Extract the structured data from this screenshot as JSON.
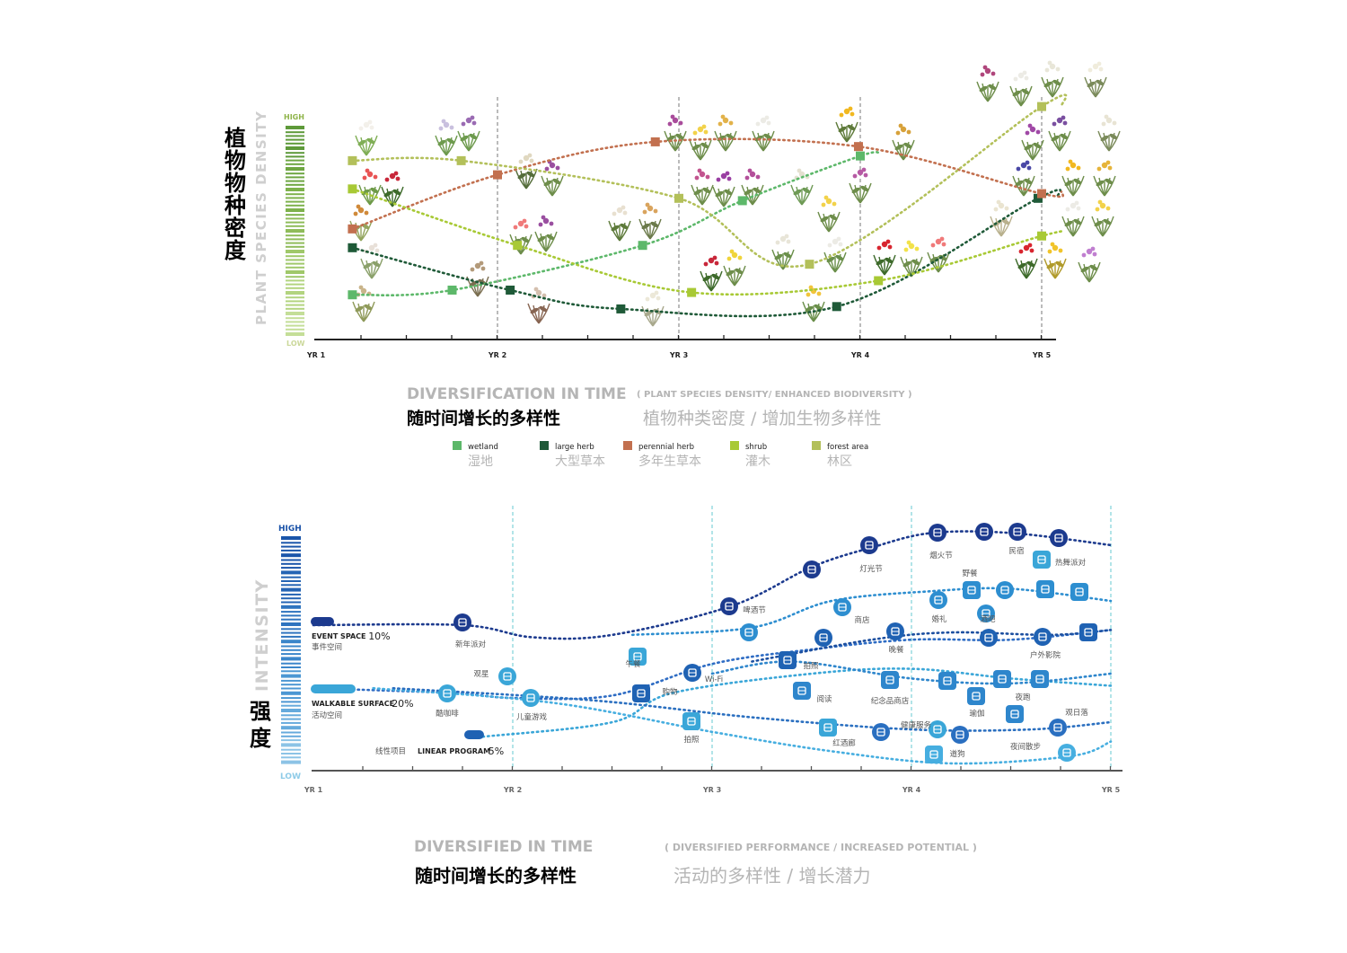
{
  "colors": {
    "wetland": "#5db86a",
    "large_herb": "#1f5a38",
    "perennial_herb": "#c2704f",
    "shrub": "#a8c935",
    "forest_area": "#b3c05a",
    "ev_dark": "#1c3a8e",
    "ev_mid": "#2e6cc4",
    "ev_light": "#3aa6d8",
    "grey": "#aaaaaa"
  },
  "top": {
    "yaxis_cn": "植物物种密度",
    "yaxis_en": "PLANT SPECIES DENSITY",
    "high": "HIGH",
    "low": "LOW",
    "title_en": "DIVERSIFICATION IN TIME",
    "subtitle_en": "( PLANT SPECIES DENSITY/ ENHANCED BIODIVERSITY )",
    "title_cn": "随时间增长的多样性",
    "subtitle_cn": "植物种类密度 / 增加生物多样性",
    "legend": [
      {
        "key": "wetland",
        "en": "wetland",
        "cn": "湿地",
        "color": "#5db86a"
      },
      {
        "key": "large_herb",
        "en": "large herb",
        "cn": "大型草本",
        "color": "#1f5a38"
      },
      {
        "key": "perennial_herb",
        "en": "perennial herb",
        "cn": "多年生草本",
        "color": "#c2704f"
      },
      {
        "key": "shrub",
        "en": "shrub",
        "cn": "灌木",
        "color": "#a8c935"
      },
      {
        "key": "forest_area",
        "en": "forest area",
        "cn": "林区",
        "color": "#b3c05a"
      }
    ]
  },
  "bottom": {
    "yaxis_cn": "强度",
    "yaxis_en": "INTENSITY",
    "high": "HIGH",
    "low": "LOW",
    "title_en": "DIVERSIFIED IN TIME",
    "subtitle_en": "( DIVERSIFIED PERFORMANCE / INCREASED POTENTIAL )",
    "title_cn": "随时间增长的多样性",
    "subtitle_cn": "活动的多样性 / 增长潜力",
    "starts": [
      {
        "en": "EVENT SPACE",
        "pct": "10%",
        "cn": "事件空间"
      },
      {
        "en": "WALKABLE SURFACE",
        "pct": "20%",
        "cn": "活动空间"
      },
      {
        "en": "LINEAR PROGRAM",
        "pct": "5%",
        "cn": "线性项目"
      }
    ],
    "activities": [
      "新年派对",
      "啤酒节",
      "灯光节",
      "烟火节",
      "民宿",
      "热舞派对",
      "野餐",
      "观星",
      "午餐",
      "商店",
      "婚礼",
      "酒吧",
      "晚餐",
      "户外影院",
      "Wi-Fi",
      "拍照",
      "阅读",
      "纪念品商店",
      "夜跑",
      "瑜伽",
      "酷咖啡",
      "儿童游戏",
      "购物",
      "拍照",
      "红酒廊",
      "健康服务",
      "道狗",
      "夜间散步",
      "观日落"
    ]
  },
  "chart_data": [
    {
      "type": "line",
      "title": "DIVERSIFICATION IN TIME",
      "subtitle": "( PLANT SPECIES DENSITY/ ENHANCED BIODIVERSITY )",
      "xlabel": "",
      "ylabel": "PLANT SPECIES DENSITY",
      "x_ticks": [
        "YR 1",
        "YR 2",
        "YR 3",
        "YR 4",
        "YR 5"
      ],
      "xlim": [
        1,
        5
      ],
      "ylim": [
        0,
        100
      ],
      "legend": "bottom",
      "series": [
        {
          "name": "wetland",
          "color": "#5db86a",
          "x": [
            1.2,
            1.75,
            2.8,
            3.35,
            4.0
          ],
          "y": [
            19,
            21,
            40,
            59,
            78
          ]
        },
        {
          "name": "large herb",
          "color": "#1f5a38",
          "x": [
            1.2,
            2.07,
            2.68,
            3.87,
            4.98
          ],
          "y": [
            39,
            21,
            13,
            14,
            60
          ]
        },
        {
          "name": "perennial herb",
          "color": "#c2704f",
          "x": [
            1.2,
            2.0,
            2.87,
            3.99,
            5.0
          ],
          "y": [
            47,
            70,
            84,
            82,
            62
          ]
        },
        {
          "name": "shrub",
          "color": "#a8c935",
          "x": [
            1.2,
            2.11,
            3.07,
            4.1,
            5.0
          ],
          "y": [
            64,
            40,
            20,
            25,
            44
          ]
        },
        {
          "name": "forest area",
          "color": "#b3c05a",
          "x": [
            1.2,
            1.8,
            3.0,
            3.72,
            5.0
          ],
          "y": [
            76,
            76,
            60,
            32,
            99
          ]
        }
      ]
    },
    {
      "type": "line",
      "title": "DIVERSIFIED IN TIME",
      "subtitle": "( DIVERSIFIED PERFORMANCE / INCREASED POTENTIAL )",
      "xlabel": "",
      "ylabel": "INTENSITY",
      "x_ticks": [
        "YR 1",
        "YR 2",
        "YR 3",
        "YR 4",
        "YR 5"
      ],
      "xlim": [
        1,
        5
      ],
      "ylim": [
        0,
        100
      ],
      "series": [
        {
          "name": "EVENT SPACE",
          "color": "#1c3a8e",
          "x": [
            1.0,
            1.75,
            2.1,
            2.5,
            3.1,
            3.5,
            3.8,
            4.1,
            4.5,
            5.0
          ],
          "y": [
            60,
            60,
            55,
            56,
            68,
            84,
            92,
            98,
            98,
            93
          ]
        },
        {
          "name": "WALKABLE SURFACE",
          "color": "#2e6cc4",
          "x": [
            1.0,
            1.7,
            2.0,
            2.5,
            3.0,
            3.5,
            4.0,
            4.5,
            5.0
          ],
          "y": [
            34,
            32,
            30,
            31,
            44,
            50,
            54,
            54,
            58
          ]
        },
        {
          "name": "LINEAR PROGRAM",
          "color": "#3aa6d8",
          "x": [
            1.85,
            2.5,
            2.8,
            3.5,
            4.0,
            4.5,
            5.0
          ],
          "y": [
            14,
            20,
            32,
            40,
            42,
            38,
            35
          ]
        }
      ]
    }
  ]
}
